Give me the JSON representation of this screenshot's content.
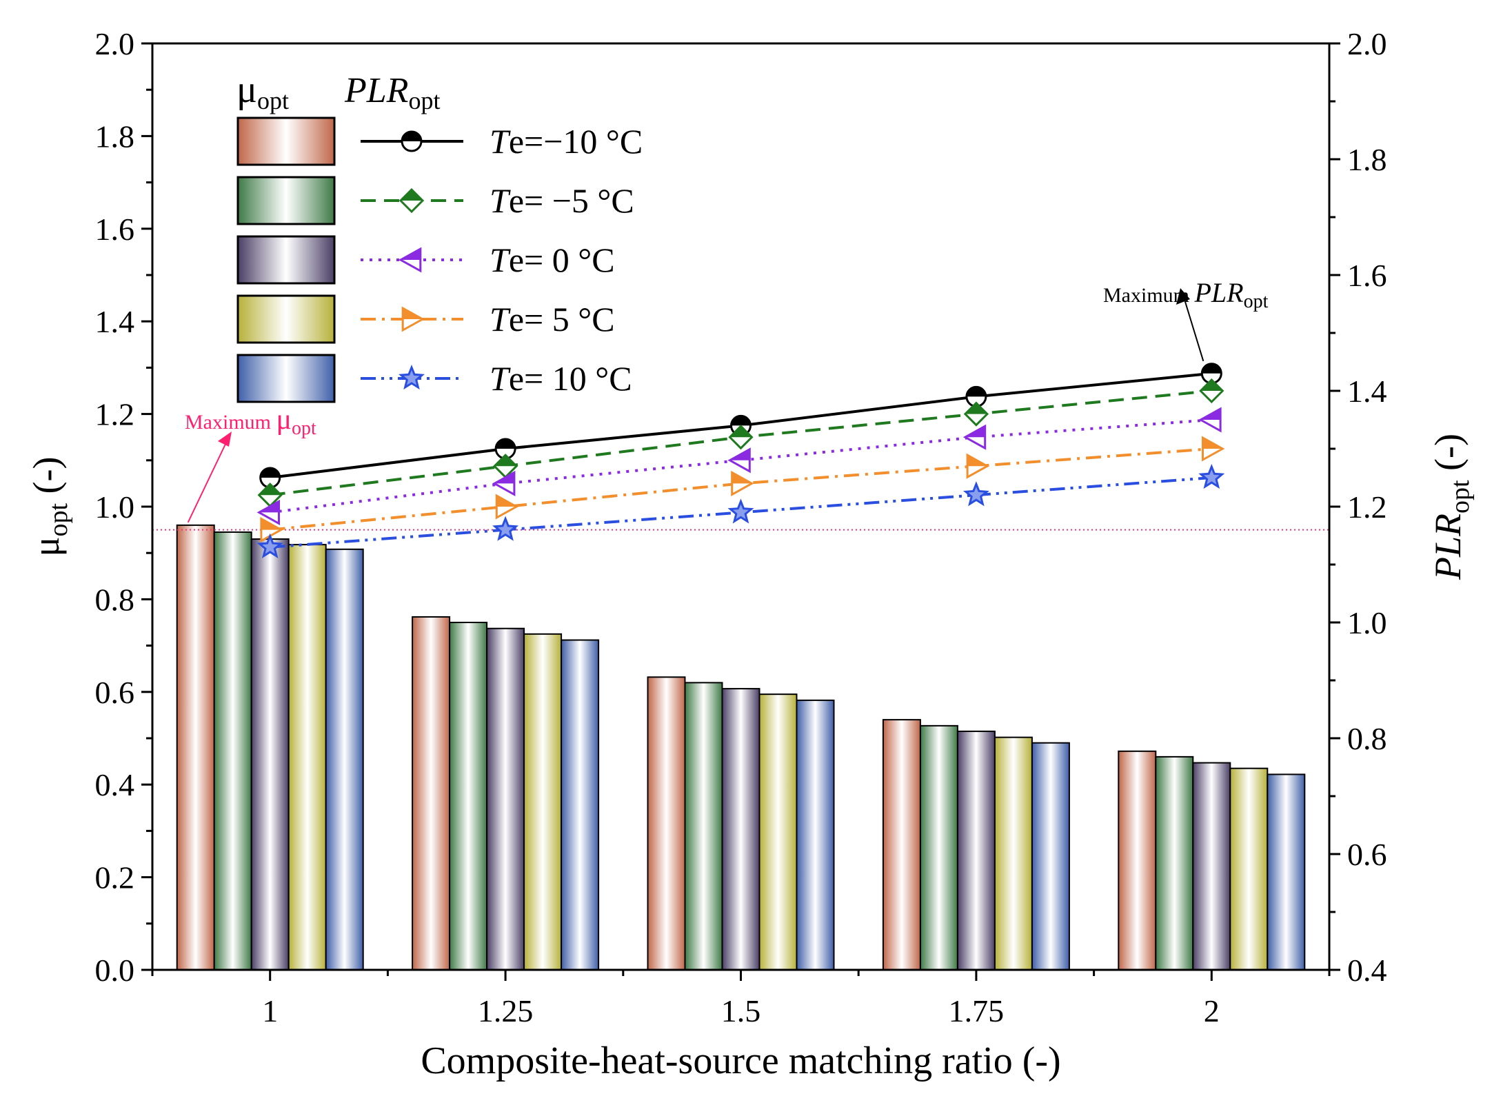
{
  "chart_data": {
    "type": "bar",
    "xlabel": "Composite-heat-source matching ratio (-)",
    "ylabel": {
      "main": "μ",
      "sub": "opt",
      "suffix": " (-)"
    },
    "y2label": {
      "main": "PLR",
      "sub": "opt",
      "suffix": " (-)"
    },
    "categories": [
      "1",
      "1.25",
      "1.5",
      "1.75",
      "2"
    ],
    "ylim": [
      0.0,
      2.0
    ],
    "y2lim": [
      0.4,
      2.0
    ],
    "yticks": [
      "0.0",
      "0.2",
      "0.4",
      "0.6",
      "0.8",
      "1.0",
      "1.2",
      "1.4",
      "1.6",
      "1.8",
      "2.0"
    ],
    "y2ticks": [
      "0.4",
      "0.6",
      "0.8",
      "1.0",
      "1.2",
      "1.4",
      "1.6",
      "1.8",
      "2.0"
    ],
    "legend": {
      "mu_header": {
        "main": "μ",
        "sub": "opt"
      },
      "plr_header": {
        "main": "PLR",
        "sub": "opt"
      },
      "entries": [
        {
          "t": "T",
          "sub": "e",
          "rest": "=−10 °C"
        },
        {
          "t": "T",
          "sub": "e",
          "rest": "= −5 °C"
        },
        {
          "t": "T",
          "sub": "e",
          "rest": "= 0 °C"
        },
        {
          "t": "T",
          "sub": "e",
          "rest": "= 5 °C"
        },
        {
          "t": "T",
          "sub": "e",
          "rest": "= 10 °C"
        }
      ]
    },
    "bar_series": [
      {
        "name": "Te=-10 °C",
        "color": "#c0674a",
        "values": [
          0.96,
          0.762,
          0.632,
          0.54,
          0.472
        ]
      },
      {
        "name": "Te=-5 °C",
        "color": "#3f7a47",
        "values": [
          0.945,
          0.75,
          0.62,
          0.527,
          0.46
        ]
      },
      {
        "name": "Te=0 °C",
        "color": "#4a3f66",
        "values": [
          0.93,
          0.737,
          0.607,
          0.515,
          0.447
        ]
      },
      {
        "name": "Te=5 °C",
        "color": "#b6b13a",
        "values": [
          0.918,
          0.725,
          0.595,
          0.502,
          0.435
        ]
      },
      {
        "name": "Te=10 °C",
        "color": "#3f5fa8",
        "values": [
          0.908,
          0.712,
          0.582,
          0.49,
          0.422
        ]
      }
    ],
    "line_series": [
      {
        "name": "Te=-10 °C",
        "color": "#000000",
        "dash": "solid",
        "marker": "circle-half",
        "values": [
          1.25,
          1.3,
          1.34,
          1.39,
          1.43
        ]
      },
      {
        "name": "Te=-5 °C",
        "color": "#1f7a1f",
        "dash": "dash",
        "marker": "diamond-half",
        "values": [
          1.22,
          1.27,
          1.32,
          1.36,
          1.4
        ]
      },
      {
        "name": "Te=0 °C",
        "color": "#8a2be2",
        "dash": "dot",
        "marker": "tri-left-half",
        "values": [
          1.19,
          1.24,
          1.28,
          1.32,
          1.35
        ]
      },
      {
        "name": "Te=5 °C",
        "color": "#f28e2b",
        "dash": "dashdot",
        "marker": "tri-right-half",
        "values": [
          1.16,
          1.2,
          1.24,
          1.27,
          1.3
        ]
      },
      {
        "name": "Te=10 °C",
        "color": "#2a4fe0",
        "dash": "dashdotdot",
        "marker": "star-half",
        "values": [
          1.13,
          1.16,
          1.19,
          1.22,
          1.25
        ]
      }
    ],
    "reference_line": {
      "value": 0.95,
      "axis": "left",
      "color": "#ff2a7a"
    },
    "annotations": {
      "max_mu": {
        "prefix": "Maximum ",
        "main": "μ",
        "sub": "opt",
        "color": "#ff1f6e",
        "target_category": "1"
      },
      "max_plr": {
        "prefix": "Maximum ",
        "main": "PLR",
        "sub": "opt",
        "color": "#000000",
        "target_category": "2"
      }
    }
  }
}
